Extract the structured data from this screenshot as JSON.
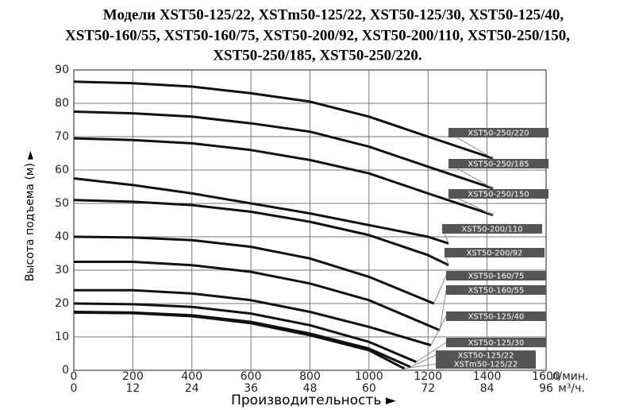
{
  "chart_data": {
    "type": "line",
    "title": [
      "Модели XST50-125/22, XSTm50-125/22, XST50-125/30, XST50-125/40,",
      "XST50-160/55, XST50-160/75, XST50-200/92, XST50-200/110, XST50-250/150,",
      "XST50-250/185, XST50-250/220."
    ],
    "xlabel": "Производительность ►",
    "ylabel": "Высота подъема (м) ►",
    "xunit": "л/мин.",
    "x2unit": "м³/ч.",
    "xlim": [
      0,
      1600
    ],
    "xticks": [
      0,
      200,
      400,
      600,
      800,
      1000,
      1200,
      1400,
      1600
    ],
    "x2lim": [
      0,
      96
    ],
    "x2ticks": [
      0,
      12,
      24,
      36,
      48,
      60,
      72,
      84,
      96
    ],
    "ylim": [
      0,
      90
    ],
    "yticks": [
      0,
      10,
      20,
      30,
      40,
      50,
      60,
      70,
      80,
      90
    ],
    "grid": true,
    "series": [
      {
        "name": "XST50-250/220",
        "color": "#111111",
        "x": [
          0,
          200,
          400,
          600,
          800,
          1000,
          1200,
          1420
        ],
        "values": [
          86.5,
          86,
          85,
          83,
          80.5,
          76,
          70,
          63.5
        ]
      },
      {
        "name": "XST50-250/185",
        "color": "#111111",
        "x": [
          0,
          200,
          400,
          600,
          800,
          1000,
          1200,
          1420
        ],
        "values": [
          77.5,
          77,
          76,
          74,
          71.5,
          67,
          61,
          54.5
        ]
      },
      {
        "name": "XST50-250/150",
        "color": "#111111",
        "x": [
          0,
          200,
          400,
          600,
          800,
          1000,
          1200,
          1420
        ],
        "values": [
          69.5,
          69,
          68,
          66,
          63,
          59,
          53,
          46.5
        ]
      },
      {
        "name": "XST50-200/110",
        "color": "#111111",
        "x": [
          0,
          200,
          400,
          600,
          800,
          1000,
          1200,
          1270
        ],
        "values": [
          57.5,
          55.5,
          53,
          50,
          47,
          43.5,
          40,
          38
        ]
      },
      {
        "name": "XST50-200/92",
        "color": "#111111",
        "x": [
          0,
          200,
          400,
          600,
          800,
          1000,
          1200,
          1270
        ],
        "values": [
          51,
          50.5,
          49.5,
          47.5,
          44.5,
          40.5,
          34.5,
          31.5
        ]
      },
      {
        "name": "XST50-160/75",
        "color": "#111111",
        "x": [
          0,
          200,
          400,
          600,
          800,
          1000,
          1220
        ],
        "values": [
          40,
          39.8,
          39,
          37,
          33.5,
          28,
          20
        ]
      },
      {
        "name": "XST50-160/55",
        "color": "#111111",
        "x": [
          0,
          200,
          400,
          600,
          800,
          1000,
          1240
        ],
        "values": [
          32.5,
          32.5,
          31.5,
          29.5,
          26,
          21,
          12
        ]
      },
      {
        "name": "XST50-125/40",
        "color": "#111111",
        "x": [
          0,
          200,
          400,
          600,
          800,
          1000,
          1210
        ],
        "values": [
          24,
          24,
          23,
          21,
          17.5,
          13,
          7.5
        ]
      },
      {
        "name": "XST50-125/30",
        "color": "#111111",
        "x": [
          0,
          200,
          400,
          600,
          800,
          1000,
          1160
        ],
        "values": [
          20,
          19.8,
          19,
          17,
          13.5,
          8.5,
          2.5
        ]
      },
      {
        "name": "XST50-125/22",
        "color": "#111111",
        "x": [
          0,
          200,
          400,
          600,
          800,
          1000,
          1140
        ],
        "values": [
          17.5,
          17.3,
          16.5,
          14.5,
          11,
          6.5,
          1
        ]
      },
      {
        "name": "XSTm50-125/22",
        "color": "#111111",
        "x": [
          0,
          200,
          400,
          600,
          800,
          1000,
          1120
        ],
        "values": [
          17.3,
          17.1,
          16.2,
          14.1,
          10.5,
          6,
          0.5
        ]
      }
    ]
  }
}
